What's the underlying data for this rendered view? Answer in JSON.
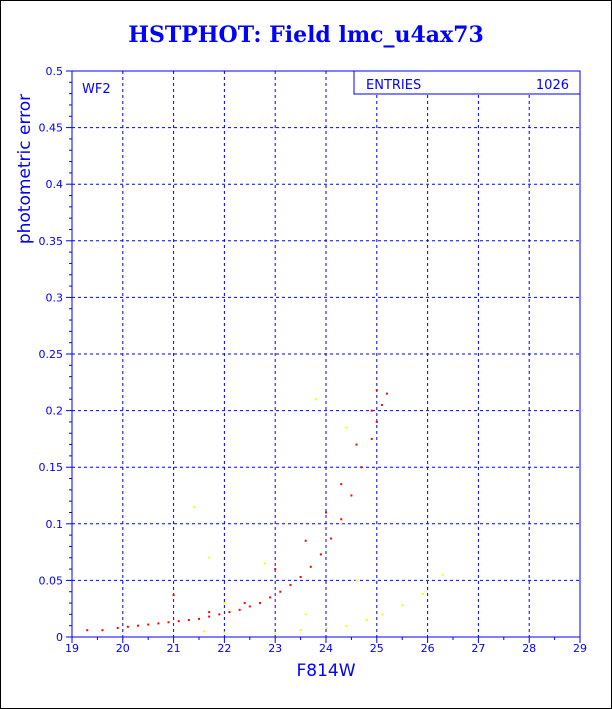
{
  "chart_data": {
    "type": "scatter",
    "title": "HSTPHOT: Field lmc_u4ax73",
    "xlabel": "F814W",
    "ylabel": "photometric error",
    "xlim": [
      19,
      29
    ],
    "ylim": [
      0,
      0.5
    ],
    "x_ticks": [
      "19",
      "20",
      "21",
      "22",
      "23",
      "24",
      "25",
      "26",
      "27",
      "28",
      "29"
    ],
    "y_ticks": [
      "0",
      "0.05",
      "0.1",
      "0.15",
      "0.2",
      "0.25",
      "0.3",
      "0.35",
      "0.4",
      "0.45",
      "0.5"
    ],
    "grid": true,
    "panel_label": "WF2",
    "stats_box": {
      "label": "ENTRIES",
      "value": "1026"
    },
    "colors": {
      "axis": "#0000ff",
      "series_main": "#ff0000",
      "series_secondary": "#ffff00"
    },
    "series": [
      {
        "color": "red",
        "points": [
          [
            19.3,
            0.006
          ],
          [
            19.6,
            0.006
          ],
          [
            19.9,
            0.008
          ],
          [
            20.1,
            0.009
          ],
          [
            20.3,
            0.01
          ],
          [
            20.5,
            0.011
          ],
          [
            20.7,
            0.012
          ],
          [
            20.9,
            0.013
          ],
          [
            21.1,
            0.014
          ],
          [
            21.3,
            0.015
          ],
          [
            21.5,
            0.016
          ],
          [
            21.7,
            0.018
          ],
          [
            21.9,
            0.02
          ],
          [
            22.1,
            0.022
          ],
          [
            22.3,
            0.024
          ],
          [
            22.5,
            0.027
          ],
          [
            22.7,
            0.03
          ],
          [
            22.9,
            0.035
          ],
          [
            23.1,
            0.04
          ],
          [
            23.3,
            0.046
          ],
          [
            23.5,
            0.053
          ],
          [
            23.7,
            0.062
          ],
          [
            23.9,
            0.073
          ],
          [
            24.1,
            0.087
          ],
          [
            24.3,
            0.104
          ],
          [
            24.5,
            0.125
          ],
          [
            24.7,
            0.15
          ],
          [
            24.9,
            0.175
          ],
          [
            25.0,
            0.19
          ],
          [
            25.1,
            0.205
          ],
          [
            25.2,
            0.215
          ],
          [
            21.0,
            0.037
          ],
          [
            21.7,
            0.022
          ],
          [
            22.4,
            0.03
          ],
          [
            23.0,
            0.06
          ],
          [
            23.6,
            0.085
          ],
          [
            24.0,
            0.11
          ],
          [
            24.3,
            0.135
          ],
          [
            24.6,
            0.17
          ],
          [
            24.9,
            0.2
          ],
          [
            25.0,
            0.218
          ]
        ]
      },
      {
        "color": "yellow",
        "points": [
          [
            21.6,
            0.005
          ],
          [
            22.0,
            0.004
          ],
          [
            23.0,
            0.003
          ],
          [
            23.5,
            0.006
          ],
          [
            24.0,
            0.008
          ],
          [
            24.4,
            0.01
          ],
          [
            24.8,
            0.015
          ],
          [
            25.1,
            0.02
          ],
          [
            25.5,
            0.028
          ],
          [
            25.9,
            0.038
          ],
          [
            26.3,
            0.055
          ],
          [
            21.4,
            0.115
          ],
          [
            21.7,
            0.07
          ],
          [
            22.8,
            0.065
          ],
          [
            23.6,
            0.02
          ],
          [
            23.8,
            0.21
          ],
          [
            24.4,
            0.185
          ],
          [
            24.3,
            0.1
          ],
          [
            24.6,
            0.05
          ],
          [
            22.0,
            0.03
          ]
        ]
      }
    ]
  }
}
